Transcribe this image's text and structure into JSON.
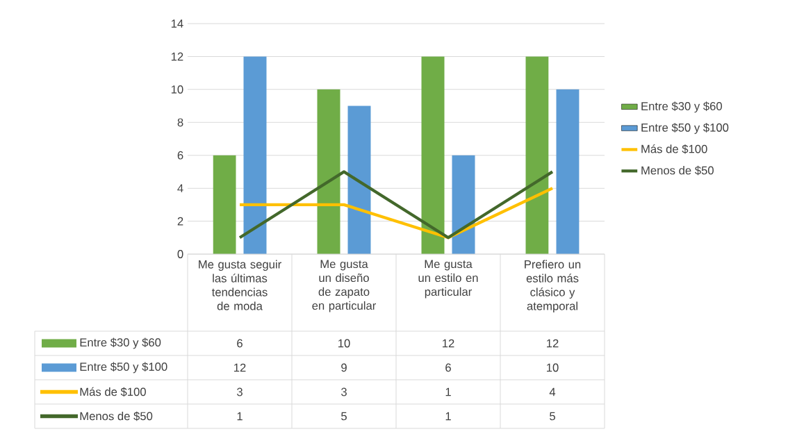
{
  "chart_data": {
    "type": "bar",
    "categories": [
      "Me gusta seguir las últimas tendencias de moda",
      "Me gusta un diseño de zapato en particular",
      "Me gusta un estilo en particular",
      "Prefiero un estilo más clásico y atemporal"
    ],
    "series": [
      {
        "name": "Entre $30 y $60",
        "color": "#70ad47",
        "values": [
          6,
          10,
          12,
          12
        ]
      },
      {
        "name": "Entre $50 y $100",
        "color": "#5b9bd5",
        "values": [
          12,
          9,
          6,
          10
        ]
      },
      {
        "name": "Más de $100",
        "type": "line",
        "color": "#ffc000",
        "values": [
          3,
          3,
          1,
          4
        ]
      },
      {
        "name": "Menos de $50",
        "type": "line",
        "color": "#43682b",
        "values": [
          1,
          5,
          1,
          5
        ]
      }
    ],
    "ylim": [
      0,
      14
    ],
    "yticks": [
      0,
      2,
      4,
      6,
      8,
      10,
      12,
      14
    ],
    "grid": "y",
    "legend": "right",
    "data_labels": true,
    "line_style": "solid"
  }
}
